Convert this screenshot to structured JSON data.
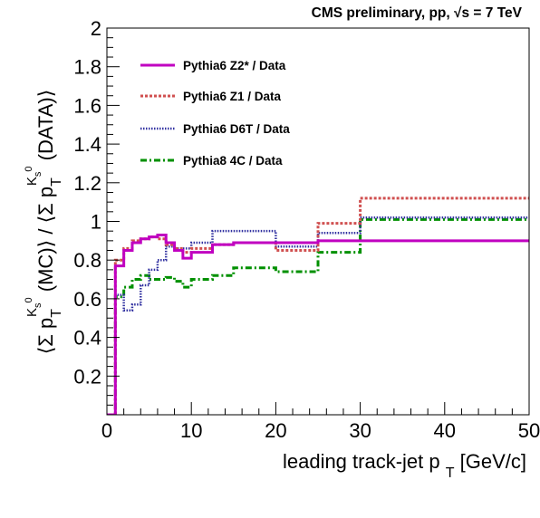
{
  "chart_data": {
    "type": "line",
    "title": "CMS preliminary, pp, √s = 7 TeV",
    "xlabel": "leading track-jet p T [GeV/c]",
    "ylabel": "⟨Σ p T Ks0 (MC)⟩ / ⟨Σ p T Ks0 (DATA)⟩",
    "xlim": [
      0,
      50
    ],
    "ylim": [
      0,
      2
    ],
    "x_ticks": [
      "0",
      "10",
      "20",
      "30",
      "40",
      "50"
    ],
    "y_ticks": [
      "0.2",
      "0.4",
      "0.6",
      "0.8",
      "1",
      "1.2",
      "1.4",
      "1.6",
      "1.8",
      "2"
    ],
    "grid": false,
    "legend_position": "top-left",
    "bin_edges": [
      0,
      1,
      2,
      3,
      4,
      5,
      6,
      7,
      8,
      9,
      10,
      12.5,
      15,
      20,
      25,
      30,
      50
    ],
    "series": [
      {
        "name": "Pythia6 Z2* / Data",
        "color": "#c000c0",
        "style": "solid",
        "values": [
          0,
          0.77,
          0.85,
          0.89,
          0.91,
          0.92,
          0.93,
          0.89,
          0.85,
          0.81,
          0.84,
          0.88,
          0.89,
          0.89,
          0.9,
          0.9
        ]
      },
      {
        "name": "Pythia6 Z1 / Data",
        "color": "#d05050",
        "style": "dashed",
        "values": [
          0,
          0.8,
          0.86,
          0.9,
          0.91,
          0.92,
          0.91,
          0.88,
          0.86,
          0.84,
          0.86,
          0.88,
          0.89,
          0.85,
          0.99,
          1.12
        ]
      },
      {
        "name": "Pythia6 D6T / Data",
        "color": "#3030a0",
        "style": "dotted",
        "values": [
          0,
          0.62,
          0.54,
          0.57,
          0.67,
          0.75,
          0.8,
          0.87,
          0.86,
          0.86,
          0.89,
          0.95,
          0.95,
          0.87,
          0.94,
          1.02
        ]
      },
      {
        "name": "Pythia8 4C / Data",
        "color": "#009000",
        "style": "dashdot",
        "values": [
          0,
          0.61,
          0.66,
          0.7,
          0.72,
          0.7,
          0.7,
          0.71,
          0.69,
          0.66,
          0.7,
          0.72,
          0.76,
          0.74,
          0.84,
          1.01
        ]
      }
    ]
  }
}
